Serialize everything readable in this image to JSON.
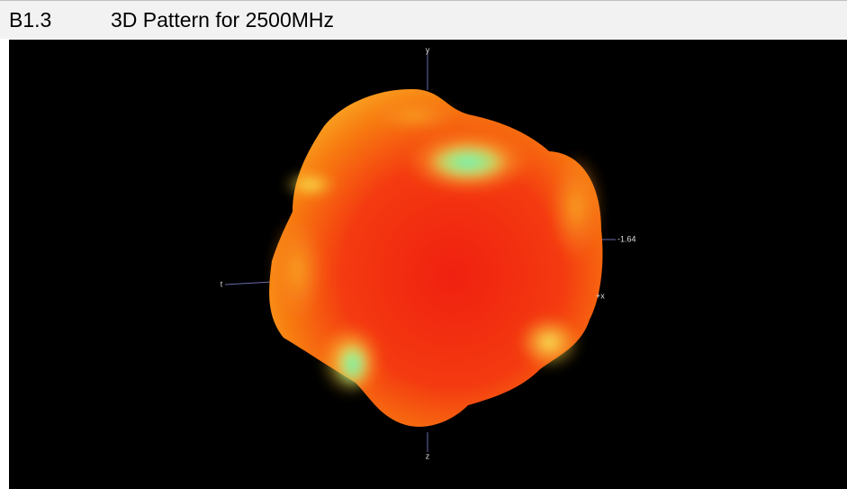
{
  "header": {
    "number": "B1.3",
    "title": "3D Pattern for 2500MHz"
  },
  "figure": {
    "axis_labels": {
      "top": "y",
      "left": "t",
      "right": "+x",
      "bottom": "z"
    },
    "scale_label": "-1.64"
  }
}
